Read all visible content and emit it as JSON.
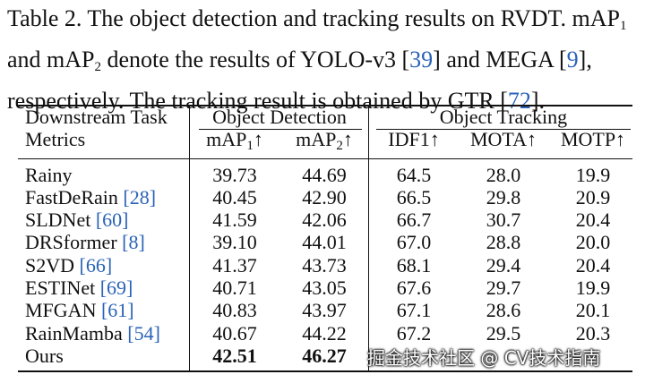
{
  "caption": {
    "part1": "Table 2. The object detection and tracking results on RVDT. mAP",
    "sub1": "1",
    "part2": " and mAP",
    "sub2": "2",
    "part3": " denote the results of YOLO-v3 [",
    "cite1": "39",
    "part4": "] and MEGA [",
    "cite2": "9",
    "part5": "], respectively. The tracking result is obtained by GTR [",
    "cite3": "72",
    "part6": "]."
  },
  "header": {
    "task_label": "Downstream Task",
    "metrics_label": "Metrics",
    "group_detection": "Object Detection",
    "group_tracking": "Object Tracking",
    "col_map1_prefix": "mAP",
    "col_map1_sub": "1",
    "col_map2_prefix": "mAP",
    "col_map2_sub": "2",
    "arrow": "↑",
    "col_idf1": "IDF1↑",
    "col_mota": "MOTA↑",
    "col_motp": "MOTP↑"
  },
  "rows": [
    {
      "method": "Rainy",
      "cite": "",
      "map1": "39.73",
      "map2": "44.69",
      "idf1": "64.5",
      "mota": "28.0",
      "motp": "19.9"
    },
    {
      "method": "FastDeRain ",
      "cite": "28",
      "map1": "40.45",
      "map2": "42.90",
      "idf1": "66.5",
      "mota": "29.8",
      "motp": "20.9"
    },
    {
      "method": "SLDNet ",
      "cite": "60",
      "map1": "41.59",
      "map2": "42.06",
      "idf1": "66.7",
      "mota": "30.7",
      "motp": "20.4"
    },
    {
      "method": "DRSformer ",
      "cite": "8",
      "map1": "39.10",
      "map2": "44.01",
      "idf1": "67.0",
      "mota": "28.8",
      "motp": "20.0"
    },
    {
      "method": "S2VD ",
      "cite": "66",
      "map1": "41.37",
      "map2": "43.73",
      "idf1": "68.1",
      "mota": "29.4",
      "motp": "20.4"
    },
    {
      "method": "ESTINet ",
      "cite": "69",
      "map1": "40.71",
      "map2": "43.05",
      "idf1": "67.6",
      "mota": "29.7",
      "motp": "19.9"
    },
    {
      "method": "MFGAN ",
      "cite": "61",
      "map1": "40.83",
      "map2": "43.97",
      "idf1": "67.1",
      "mota": "28.6",
      "motp": "20.1"
    },
    {
      "method": "RainMamba ",
      "cite": "54",
      "map1": "40.67",
      "map2": "44.22",
      "idf1": "67.2",
      "mota": "29.5",
      "motp": "20.3"
    },
    {
      "method": "Ours",
      "cite": "",
      "map1": "42.51",
      "map2": "46.27",
      "idf1": "",
      "mota": "",
      "motp": ""
    }
  ],
  "watermark": "掘金技术社区 @ CV技术指南"
}
